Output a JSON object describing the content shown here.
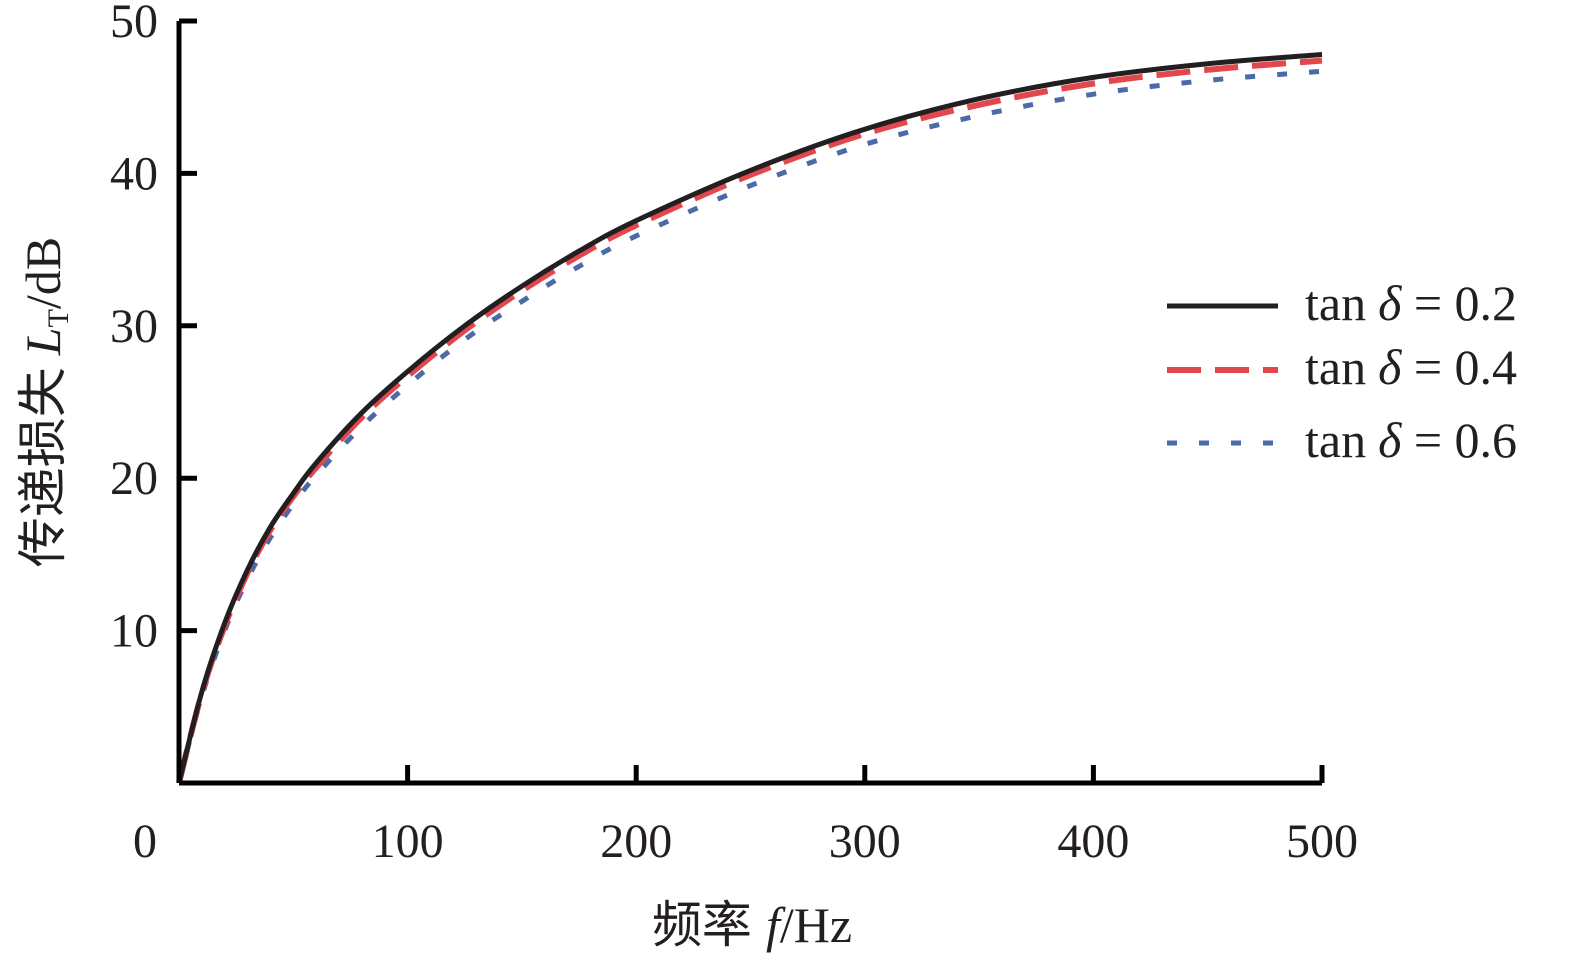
{
  "chart_data": {
    "type": "line",
    "xlabel": "频率 f/Hz",
    "xlabel_parts": {
      "cjk": "频率",
      "var": "f",
      "unit": "/Hz"
    },
    "ylabel": "传递损失 L_T/dB",
    "ylabel_parts": {
      "cjk": "传递损失",
      "var": "L",
      "sub": "T",
      "unit": "/dB"
    },
    "xlim": [
      0,
      500
    ],
    "ylim": [
      0,
      50
    ],
    "xticks": [
      "0",
      "100",
      "200",
      "300",
      "400",
      "500"
    ],
    "yticks": [
      "10",
      "20",
      "30",
      "40",
      "50"
    ],
    "grid": false,
    "legend_position": "right",
    "x": [
      0,
      10,
      20,
      30,
      40,
      50,
      60,
      80,
      100,
      125,
      150,
      175,
      200,
      250,
      300,
      350,
      400,
      450,
      500
    ],
    "series": [
      {
        "name": "tan δ = 0.2",
        "label_parts": {
          "fn": "tan",
          "sym": "δ",
          "rest": " = 0.2"
        },
        "color": "#231f20",
        "style": "solid",
        "values": [
          0,
          6.0,
          10.5,
          14.0,
          16.8,
          19.0,
          21.0,
          24.3,
          27.0,
          30.0,
          32.6,
          34.9,
          36.9,
          40.2,
          42.9,
          44.9,
          46.3,
          47.2,
          47.8
        ]
      },
      {
        "name": "tan δ = 0.4",
        "label_parts": {
          "fn": "tan",
          "sym": "δ",
          "rest": " = 0.4"
        },
        "color": "#e2474e",
        "style": "dashed",
        "values": [
          0,
          5.9,
          10.3,
          13.8,
          16.6,
          18.8,
          20.7,
          24.0,
          26.7,
          29.7,
          32.3,
          34.6,
          36.6,
          39.9,
          42.6,
          44.5,
          45.9,
          46.8,
          47.4
        ]
      },
      {
        "name": "tan δ = 0.6",
        "label_parts": {
          "fn": "tan",
          "sym": "δ",
          "rest": " = 0.6"
        },
        "color": "#4d6aa8",
        "style": "dotted",
        "values": [
          0,
          5.7,
          10.0,
          13.4,
          16.1,
          18.3,
          20.2,
          23.4,
          26.1,
          29.1,
          31.6,
          33.9,
          35.9,
          39.2,
          41.9,
          43.8,
          45.2,
          46.1,
          46.7
        ]
      }
    ]
  }
}
